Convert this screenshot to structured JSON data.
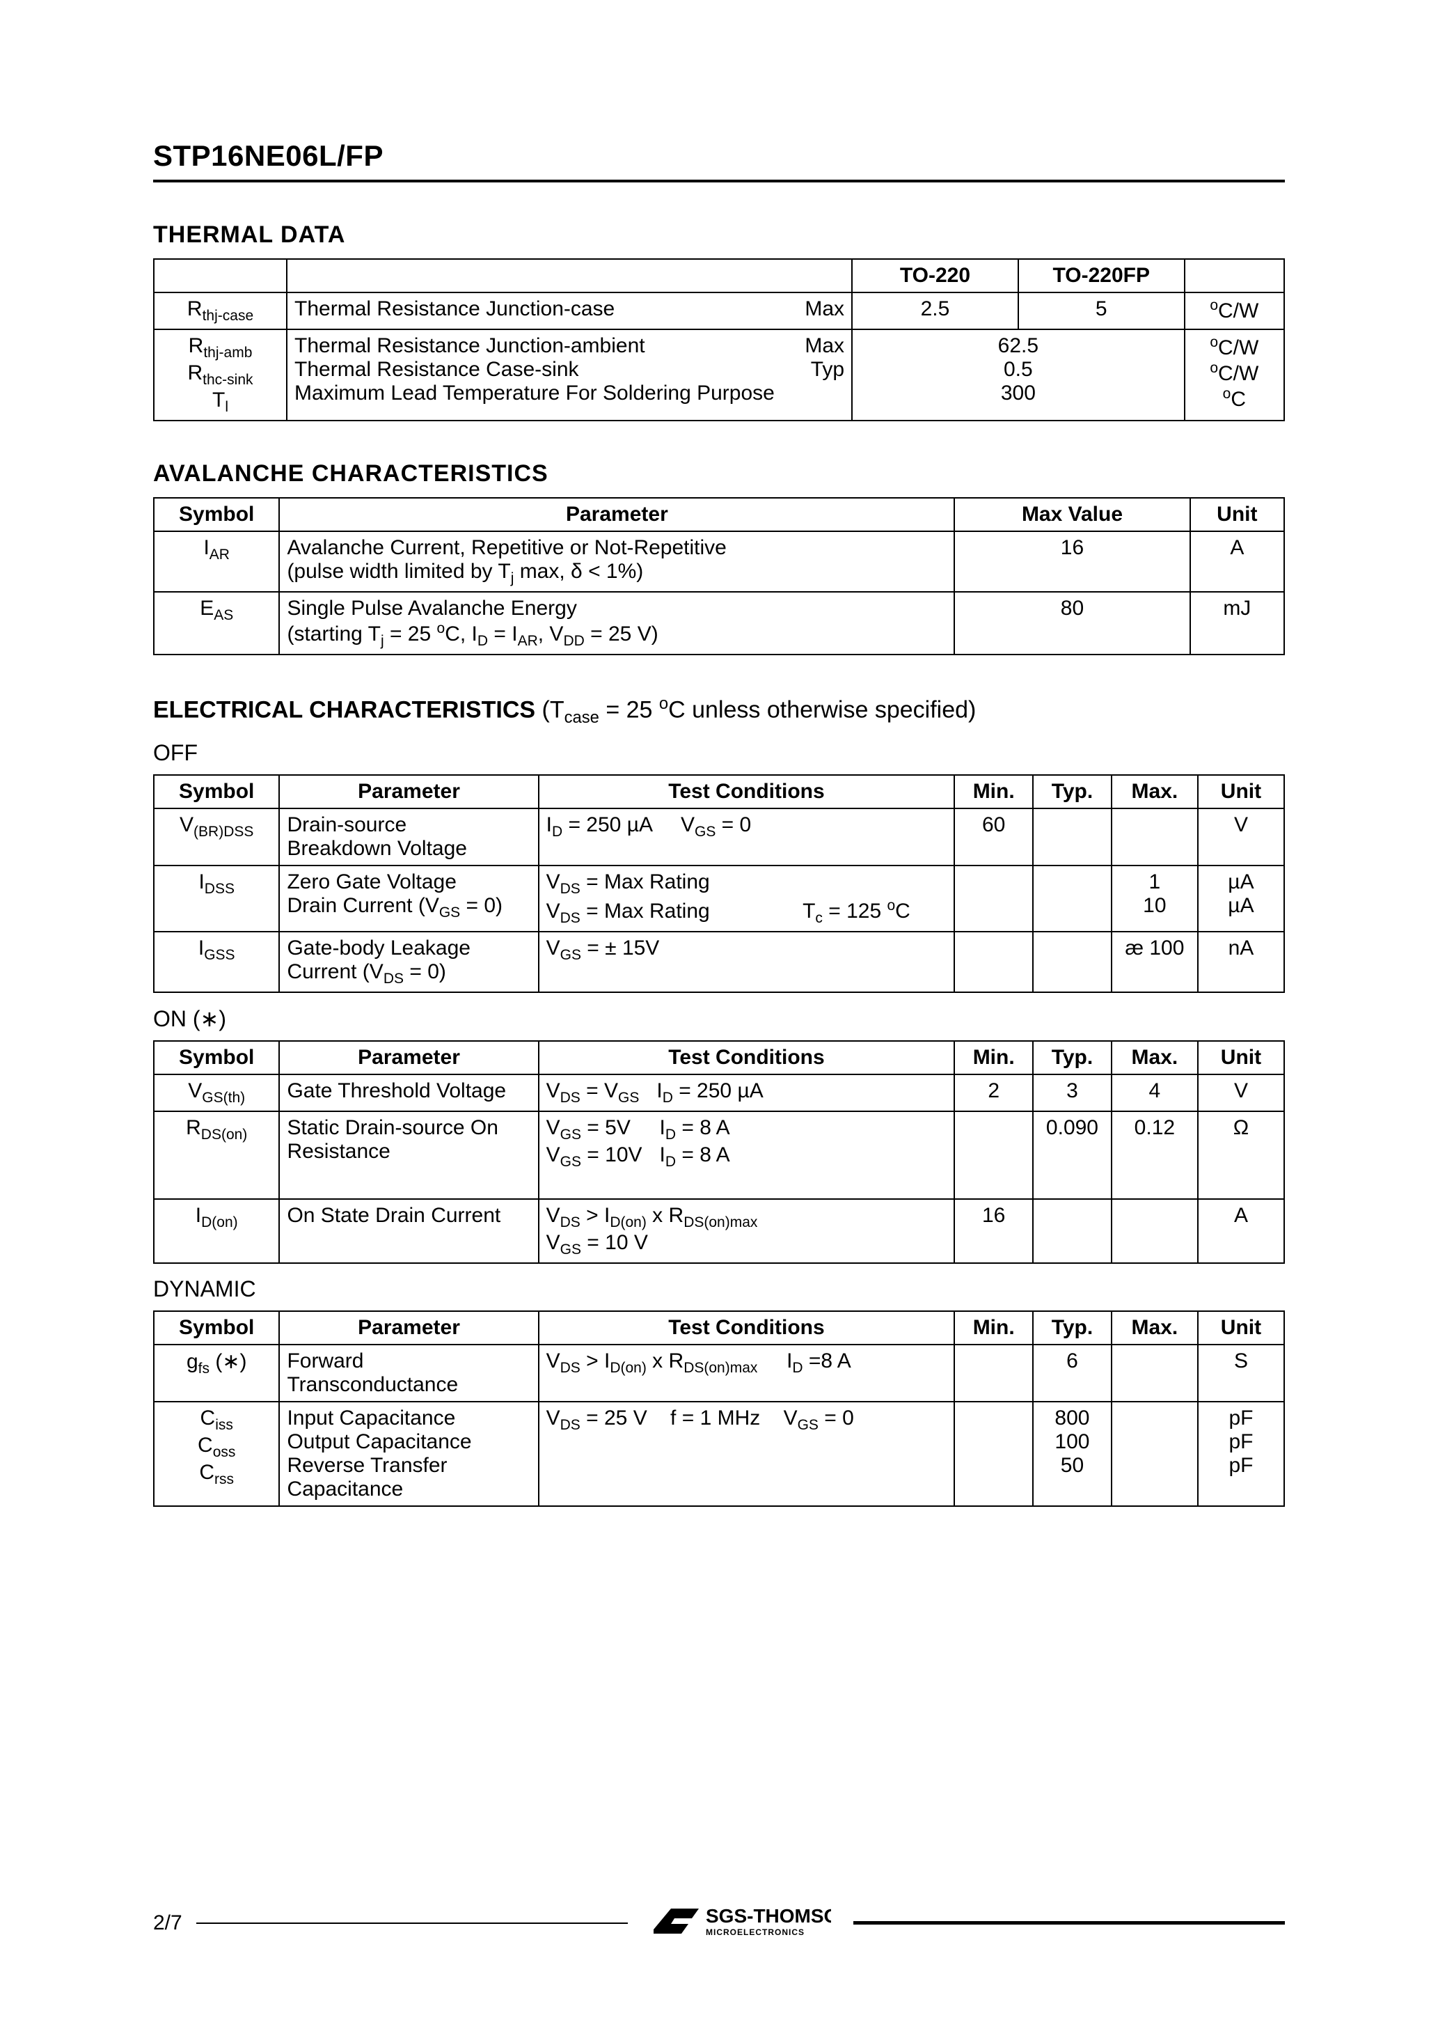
{
  "part_number": "STP16NE06L/FP",
  "page_number": "2/7",
  "logo_main": "SGS-THOMSON",
  "logo_sub": "MICROELECTRONICS",
  "thermal": {
    "title": "THERMAL  DATA",
    "col1": "TO-220",
    "col2": "TO-220FP",
    "rows": [
      {
        "sym_html": "R<span class='sub'>thj-case</span>",
        "param": "Thermal  Resistance  Junction-case",
        "qual": "Max",
        "v1": "2.5",
        "v2": "5",
        "unit_html": "<span class='sup'>o</span>C/W",
        "merged": false
      },
      {
        "sym_html": "R<span class='sub'>thj-amb</span><br>R<span class='sub'>thc-sink</span><br>T<span class='sub'>l</span>",
        "param": "Thermal  Resistance  Junction-ambient<br>Thermal  Resistance  Case-sink<br>Maximum Lead Temperature For Soldering Purpose",
        "qual": "Max<br>Typ<br>&nbsp;",
        "v_merged": "62.5<br>0.5<br>300",
        "unit_html": "<span class='sup'>o</span>C/W<br><span class='sup'>o</span>C/W<br><span class='sup'>o</span>C",
        "merged": true
      }
    ]
  },
  "avalanche": {
    "title": "AVALANCHE  CHARACTERISTICS",
    "headers": [
      "Symbol",
      "Parameter",
      "Max  Value",
      "Unit"
    ],
    "rows": [
      {
        "sym_html": "I<span class='sub'>AR</span>",
        "param_html": "Avalanche Current, Repetitive or Not-Repetitive<br>(pulse width limited by T<span class='sub'>j</span> max, δ &lt; 1%)",
        "max": "16",
        "unit": "A"
      },
      {
        "sym_html": "E<span class='sub'>AS</span>",
        "param_html": "Single Pulse Avalanche Energy<br>(starting T<span class='sub'>j</span> = 25 <span class='sup'>o</span>C, I<span class='sub'>D</span> = I<span class='sub'>AR</span>, V<span class='sub'>DD</span> = 25 V)",
        "max": "80",
        "unit": "mJ"
      }
    ]
  },
  "electrical": {
    "title_html": "<b>ELECTRICAL  CHARACTERISTICS</b>  (T<span class='sub'>case</span> = 25 <span class='sup'>o</span>C unless otherwise specified)",
    "off": {
      "title": "OFF",
      "headers": [
        "Symbol",
        "Parameter",
        "Test Conditions",
        "Min.",
        "Typ.",
        "Max.",
        "Unit"
      ],
      "rows": [
        {
          "sym_html": "V<span class='sub'>(BR)DSS</span>",
          "param_html": "Drain-source<br>Breakdown Voltage",
          "tc_html": "I<span class='sub'>D</span> = 250 µA<span class='tcgap'></span>V<span class='sub'>GS</span> = 0",
          "min": "60",
          "typ": "",
          "max": "",
          "unit": "V"
        },
        {
          "sym_html": "I<span class='sub'>DSS</span>",
          "param_html": "Zero Gate Voltage<br>Drain Current (V<span class='sub'>GS</span> = 0)",
          "tc_html": "V<span class='sub'>DS</span> = Max Rating<br>V<span class='sub'>DS</span> = Max Rating&nbsp;&nbsp;&nbsp;&nbsp;&nbsp;&nbsp;&nbsp;&nbsp;&nbsp;&nbsp;&nbsp;&nbsp;&nbsp;&nbsp;&nbsp;&nbsp;T<span class='sub'>c</span> = 125 <span class='sup'>o</span>C",
          "min": "",
          "typ": "",
          "max": "1<br>10",
          "unit": "µA<br>µA"
        },
        {
          "sym_html": "I<span class='sub'>GSS</span>",
          "param_html": "Gate-body Leakage<br>Current (V<span class='sub'>DS</span> = 0)",
          "tc_html": "V<span class='sub'>GS</span> = ± 15V",
          "min": "",
          "typ": "",
          "max": "æ 100",
          "unit": "nA"
        }
      ]
    },
    "on": {
      "title": "ON (∗)",
      "headers": [
        "Symbol",
        "Parameter",
        "Test Conditions",
        "Min.",
        "Typ.",
        "Max.",
        "Unit"
      ],
      "rows": [
        {
          "sym_html": "V<span class='sub'>GS(th)</span>",
          "param_html": "Gate Threshold Voltage",
          "tc_html": "V<span class='sub'>DS</span> = V<span class='sub'>GS</span>&nbsp;&nbsp;&nbsp;I<span class='sub'>D</span> = 250 µA",
          "min": "2",
          "typ": "3",
          "max": "4",
          "unit": "V"
        },
        {
          "sym_html": "R<span class='sub'>DS(on)</span>",
          "param_html": "Static Drain-source On<br>Resistance",
          "tc_html": "V<span class='sub'>GS</span> = 5V&nbsp;&nbsp;&nbsp;&nbsp;&nbsp;I<span class='sub'>D</span> = 8 A<br>V<span class='sub'>GS</span> = 10V&nbsp;&nbsp;&nbsp;I<span class='sub'>D</span> = 8 A<br>&nbsp;",
          "min": "",
          "typ": "0.090",
          "max": "0.12",
          "unit": "Ω"
        },
        {
          "sym_html": "I<span class='sub'>D(on)</span>",
          "param_html": "On State Drain Current",
          "tc_html": "V<span class='sub'>DS</span> &gt; I<span class='sub'>D(on)</span> x R<span class='sub'>DS(on)max</span><br>V<span class='sub'>GS</span> = 10 V",
          "min": "16",
          "typ": "",
          "max": "",
          "unit": "A"
        }
      ]
    },
    "dynamic": {
      "title": "DYNAMIC",
      "headers": [
        "Symbol",
        "Parameter",
        "Test Conditions",
        "Min.",
        "Typ.",
        "Max.",
        "Unit"
      ],
      "rows": [
        {
          "sym_html": "g<span class='sub'>fs</span> (∗)",
          "param_html": "Forward<br>Transconductance",
          "tc_html": "V<span class='sub'>DS</span> &gt; I<span class='sub'>D(on)</span> x R<span class='sub'>DS(on)max</span>&nbsp;&nbsp;&nbsp;&nbsp;&nbsp;I<span class='sub'>D</span> =8 A",
          "min": "",
          "typ": "6",
          "max": "",
          "unit": "S"
        },
        {
          "sym_html": "C<span class='sub'>iss</span><br>C<span class='sub'>oss</span><br>C<span class='sub'>rss</span>",
          "param_html": "Input Capacitance<br>Output Capacitance<br>Reverse Transfer<br>Capacitance",
          "tc_html": "V<span class='sub'>DS</span> = 25 V&nbsp;&nbsp;&nbsp;&nbsp;f = 1 MHz&nbsp;&nbsp;&nbsp;&nbsp;V<span class='sub'>GS</span> = 0",
          "min": "",
          "typ": "800<br>100<br>50",
          "max": "",
          "unit": "pF<br>pF<br>pF"
        }
      ]
    }
  },
  "col_widths": {
    "ec7": [
      "160",
      "330",
      "530",
      "100",
      "100",
      "110",
      "110"
    ],
    "avalanche": [
      "160",
      "860",
      "300",
      "120"
    ],
    "thermal": [
      "160",
      "680",
      "200",
      "200",
      "120"
    ]
  }
}
